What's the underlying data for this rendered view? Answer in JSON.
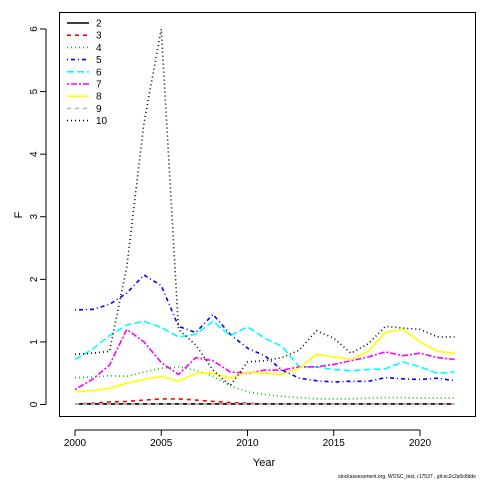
{
  "chart_data": {
    "type": "line",
    "title": "",
    "xlabel": "Year",
    "ylabel": "F",
    "xlim": [
      2000,
      2022
    ],
    "ylim": [
      0,
      6
    ],
    "x_ticks": [
      "2000",
      "2005",
      "2010",
      "2015",
      "2020"
    ],
    "y_ticks": [
      "0",
      "1",
      "2",
      "3",
      "4",
      "5",
      "6"
    ],
    "grid": false,
    "legend_position": "top-left",
    "x": [
      2000,
      2001,
      2002,
      2003,
      2004,
      2005,
      2006,
      2007,
      2008,
      2009,
      2010,
      2011,
      2012,
      2013,
      2014,
      2015,
      2016,
      2017,
      2018,
      2019,
      2020,
      2021,
      2022
    ],
    "series": [
      {
        "name": "2",
        "color": "#000000",
        "dash": "solid",
        "values": [
          0.01,
          0.01,
          0.01,
          0.01,
          0.01,
          0.01,
          0.01,
          0.01,
          0.01,
          0.01,
          0.01,
          0.01,
          0.01,
          0.01,
          0.01,
          0.01,
          0.01,
          0.01,
          0.01,
          0.01,
          0.01,
          0.01,
          0.01
        ]
      },
      {
        "name": "3",
        "color": "#ff0000",
        "dash": "dashed",
        "values": [
          0.01,
          0.02,
          0.04,
          0.05,
          0.07,
          0.09,
          0.09,
          0.07,
          0.05,
          0.03,
          0.02,
          0.01,
          0.01,
          0.01,
          0.01,
          0.01,
          0.01,
          0.01,
          0.01,
          0.01,
          0.01,
          0.01,
          0.01
        ]
      },
      {
        "name": "4",
        "color": "#00cd00",
        "dash": "dotted",
        "values": [
          0.43,
          0.44,
          0.46,
          0.45,
          0.52,
          0.58,
          0.6,
          0.55,
          0.45,
          0.3,
          0.2,
          0.16,
          0.13,
          0.11,
          0.09,
          0.09,
          0.09,
          0.1,
          0.11,
          0.11,
          0.1,
          0.1,
          0.1
        ]
      },
      {
        "name": "5",
        "color": "#0000ff",
        "dash": "dotdash",
        "values": [
          1.51,
          1.52,
          1.6,
          1.78,
          2.07,
          1.9,
          1.25,
          1.15,
          1.44,
          1.12,
          0.9,
          0.78,
          0.55,
          0.42,
          0.38,
          0.36,
          0.37,
          0.37,
          0.43,
          0.41,
          0.4,
          0.42,
          0.38
        ]
      },
      {
        "name": "6",
        "color": "#00ffff",
        "dash": "longdash",
        "values": [
          0.72,
          0.88,
          1.1,
          1.27,
          1.33,
          1.23,
          1.08,
          1.12,
          1.33,
          1.1,
          1.24,
          1.06,
          0.93,
          0.6,
          0.6,
          0.56,
          0.54,
          0.56,
          0.57,
          0.68,
          0.6,
          0.5,
          0.52
        ]
      },
      {
        "name": "7",
        "color": "#ff00ff",
        "dash": "twodash",
        "values": [
          0.24,
          0.4,
          0.63,
          1.2,
          1.0,
          0.67,
          0.48,
          0.75,
          0.7,
          0.52,
          0.5,
          0.55,
          0.55,
          0.6,
          0.6,
          0.64,
          0.7,
          0.76,
          0.84,
          0.78,
          0.82,
          0.75,
          0.72
        ]
      },
      {
        "name": "8",
        "color": "#ffff00",
        "dash": "solid",
        "values": [
          0.2,
          0.22,
          0.26,
          0.34,
          0.4,
          0.45,
          0.37,
          0.5,
          0.5,
          0.42,
          0.52,
          0.5,
          0.48,
          0.58,
          0.8,
          0.76,
          0.72,
          0.85,
          1.15,
          1.2,
          1.0,
          0.85,
          0.82
        ]
      },
      {
        "name": "9",
        "color": "#bebebe",
        "dash": "dashed",
        "values": [
          0.01,
          0.01,
          0.01,
          0.01,
          0.01,
          0.01,
          0.01,
          0.01,
          0.01,
          0.01,
          0.01,
          0.01,
          0.01,
          0.01,
          0.01,
          0.01,
          0.01,
          0.01,
          0.01,
          0.01,
          0.01,
          0.01,
          0.01
        ]
      },
      {
        "name": "10",
        "color": "#000000",
        "dash": "dotted",
        "values": [
          0.8,
          0.82,
          0.85,
          2.2,
          4.5,
          6.0,
          1.2,
          0.95,
          0.55,
          0.3,
          0.68,
          0.7,
          0.75,
          0.87,
          1.18,
          1.06,
          0.82,
          0.97,
          1.25,
          1.22,
          1.2,
          1.08,
          1.08
        ]
      }
    ]
  },
  "footer": "stockassessment.org, WOSC_test, r17537 , git:ec2c2a0c8dde"
}
